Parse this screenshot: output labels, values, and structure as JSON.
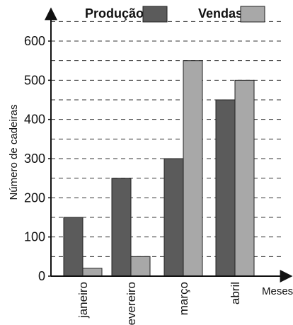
{
  "chart_data": {
    "type": "bar",
    "categories": [
      "janeiro",
      "fevereiro",
      "março",
      "abril"
    ],
    "series": [
      {
        "name": "Produção",
        "values": [
          150,
          250,
          300,
          450
        ],
        "color": "#5b5b5b"
      },
      {
        "name": "Vendas",
        "values": [
          20,
          50,
          550,
          500
        ],
        "color": "#a8a8a8"
      }
    ],
    "xlabel": "Meses",
    "ylabel": "Número de cadeiras",
    "ylim": [
      0,
      650
    ],
    "yticks": [
      0,
      100,
      200,
      300,
      400,
      500,
      600
    ],
    "grid_step": 50,
    "grid": "dashed-horizontal",
    "legend_position": "top"
  }
}
